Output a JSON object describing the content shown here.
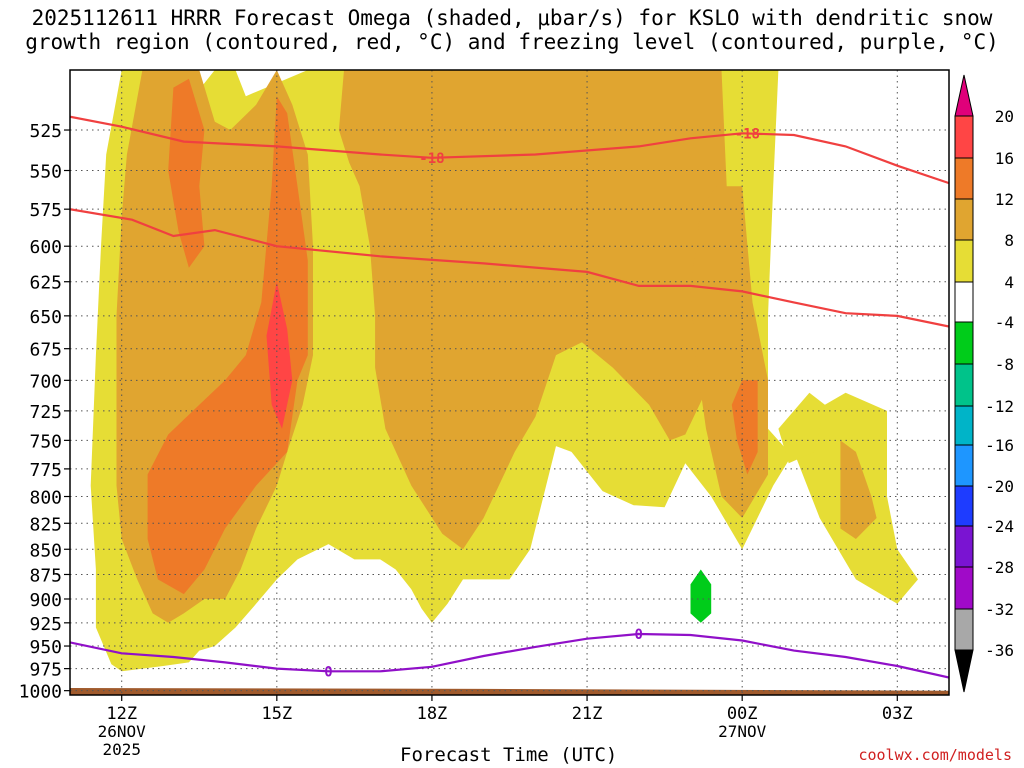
{
  "title": {
    "line1": "2025112611 HRRR Forecast Omega (shaded, μbar/s) for KSLO with dendritic snow",
    "line2": "growth region (contoured, red, °C) and freezing level (contoured, purple, °C)"
  },
  "credit": "coolwx.com/models",
  "chart_data": {
    "type": "heatmap",
    "xlabel": "Forecast Time (UTC)",
    "ylabel": "",
    "x_ticks": [
      {
        "label": "12Z",
        "sub": [
          "26NOV",
          "2025"
        ],
        "hour": 12
      },
      {
        "label": "15Z",
        "sub": [],
        "hour": 15
      },
      {
        "label": "18Z",
        "sub": [],
        "hour": 18
      },
      {
        "label": "21Z",
        "sub": [],
        "hour": 21
      },
      {
        "label": "00Z",
        "sub": [
          "27NOV"
        ],
        "hour": 24
      },
      {
        "label": "03Z",
        "sub": [],
        "hour": 27
      }
    ],
    "xlim_hours": [
      11,
      28
    ],
    "y_ticks": [
      525,
      550,
      575,
      600,
      625,
      650,
      675,
      700,
      725,
      750,
      775,
      800,
      825,
      850,
      875,
      900,
      925,
      950,
      975,
      1000
    ],
    "ylim_hPa": [
      490,
      1005
    ],
    "y_scale": "log",
    "grid": true,
    "colorbar": {
      "levels": [
        "20",
        "16",
        "12",
        "8",
        "4",
        "-4",
        "-8",
        "-12",
        "-16",
        "-20",
        "-24",
        "-28",
        "-32",
        "-36"
      ],
      "colors": [
        "#e0007a",
        "#ff4545",
        "#ee7a28",
        "#e0a530",
        "#e6dd35",
        "#ffffff",
        "#00cc1a",
        "#00c38a",
        "#00b4c8",
        "#1e96ff",
        "#1e3cff",
        "#7a14d2",
        "#a00ac8",
        "#a8a8a8",
        "#000000"
      ]
    },
    "omega_fields": [
      {
        "name": "Omega 4 to 8",
        "color": "#e6dd35",
        "polygons": [
          [
            [
              12.0,
              490
            ],
            [
              13.0,
              490
            ],
            [
              13.4,
              505
            ],
            [
              13.8,
              490
            ],
            [
              14.2,
              490
            ],
            [
              14.4,
              505
            ],
            [
              15.6,
              490
            ],
            [
              16.5,
              490
            ],
            [
              16.9,
              490
            ],
            [
              22.3,
              490
            ],
            [
              23.6,
              490
            ],
            [
              24.7,
              490
            ],
            [
              24.6,
              560
            ],
            [
              24.5,
              650
            ],
            [
              24.5,
              740
            ],
            [
              24.9,
              760
            ],
            [
              25.2,
              730
            ],
            [
              26.0,
              710
            ],
            [
              26.8,
              725
            ],
            [
              26.8,
              800
            ],
            [
              27.0,
              850
            ],
            [
              27.4,
              880
            ],
            [
              27.0,
              905
            ],
            [
              26.2,
              880
            ],
            [
              25.5,
              820
            ],
            [
              25.0,
              760
            ],
            [
              24.6,
              790
            ],
            [
              24.0,
              850
            ],
            [
              23.4,
              800
            ],
            [
              22.9,
              770
            ],
            [
              22.5,
              810
            ],
            [
              21.9,
              808
            ],
            [
              21.3,
              795
            ],
            [
              20.7,
              760
            ],
            [
              20.4,
              755
            ],
            [
              19.9,
              850
            ],
            [
              19.5,
              880
            ],
            [
              19.0,
              880
            ],
            [
              18.6,
              880
            ],
            [
              18.3,
              905
            ],
            [
              18.0,
              925
            ],
            [
              17.8,
              910
            ],
            [
              17.6,
              890
            ],
            [
              17.3,
              870
            ],
            [
              17.0,
              860
            ],
            [
              16.5,
              860
            ],
            [
              16.0,
              845
            ],
            [
              15.4,
              860
            ],
            [
              15.0,
              880
            ],
            [
              14.6,
              905
            ],
            [
              14.2,
              930
            ],
            [
              13.8,
              950
            ],
            [
              13.5,
              955
            ],
            [
              13.3,
              968
            ],
            [
              12.8,
              972
            ],
            [
              12.0,
              978
            ],
            [
              11.8,
              970
            ],
            [
              11.5,
              930
            ],
            [
              11.5,
              870
            ],
            [
              11.4,
              790
            ],
            [
              11.5,
              680
            ],
            [
              11.6,
              600
            ],
            [
              11.7,
              540
            ]
          ],
          [
            [
              24.7,
              740
            ],
            [
              25.3,
              710
            ],
            [
              25.6,
              720
            ],
            [
              25.4,
              760
            ],
            [
              24.9,
              770
            ]
          ]
        ]
      },
      {
        "name": "Omega 8 to 12",
        "color": "#e0a530",
        "polygons": [
          [
            [
              16.3,
              490
            ],
            [
              22.3,
              490
            ],
            [
              23.6,
              490
            ],
            [
              23.7,
              560
            ],
            [
              23.6,
              625
            ],
            [
              23.4,
              700
            ],
            [
              22.9,
              745
            ],
            [
              22.6,
              750
            ],
            [
              22.2,
              720
            ],
            [
              21.5,
              690
            ],
            [
              20.9,
              670
            ],
            [
              20.4,
              680
            ],
            [
              20.0,
              730
            ],
            [
              19.6,
              760
            ],
            [
              19.0,
              820
            ],
            [
              18.6,
              850
            ],
            [
              18.2,
              835
            ],
            [
              17.6,
              790
            ],
            [
              17.1,
              740
            ],
            [
              16.9,
              690
            ],
            [
              16.9,
              650
            ],
            [
              16.8,
              600
            ],
            [
              16.6,
              560
            ],
            [
              16.4,
              545
            ],
            [
              16.2,
              525
            ]
          ],
          [
            [
              12.4,
              490
            ],
            [
              13.5,
              490
            ],
            [
              13.8,
              520
            ],
            [
              14.1,
              525
            ],
            [
              14.6,
              510
            ],
            [
              15.0,
              490
            ],
            [
              15.3,
              510
            ],
            [
              15.6,
              540
            ],
            [
              15.7,
              600
            ],
            [
              15.7,
              680
            ],
            [
              15.5,
              720
            ],
            [
              15.2,
              760
            ],
            [
              15.0,
              790
            ],
            [
              14.6,
              830
            ],
            [
              14.3,
              870
            ],
            [
              14.0,
              900
            ],
            [
              13.6,
              900
            ],
            [
              13.2,
              915
            ],
            [
              12.9,
              925
            ],
            [
              12.6,
              915
            ],
            [
              12.3,
              880
            ],
            [
              12.0,
              840
            ],
            [
              11.9,
              790
            ],
            [
              11.9,
              720
            ],
            [
              11.9,
              650
            ],
            [
              12.0,
              580
            ],
            [
              12.1,
              540
            ]
          ],
          [
            [
              23.2,
              575
            ],
            [
              23.5,
              560
            ],
            [
              24.0,
              560
            ],
            [
              24.2,
              640
            ],
            [
              24.5,
              700
            ],
            [
              24.5,
              780
            ],
            [
              24.0,
              820
            ],
            [
              23.6,
              800
            ],
            [
              23.3,
              740
            ],
            [
              23.1,
              680
            ],
            [
              23.0,
              630
            ]
          ],
          [
            [
              25.9,
              750
            ],
            [
              26.2,
              760
            ],
            [
              26.5,
              800
            ],
            [
              26.6,
              820
            ],
            [
              26.2,
              840
            ],
            [
              25.9,
              830
            ]
          ]
        ]
      },
      {
        "name": "Omega 12 to 16",
        "color": "#ee7a28",
        "polygons": [
          [
            [
              13.0,
              500
            ],
            [
              13.3,
              495
            ],
            [
              13.6,
              525
            ],
            [
              13.5,
              560
            ],
            [
              13.6,
              600
            ],
            [
              13.3,
              615
            ],
            [
              13.1,
              590
            ],
            [
              12.9,
              550
            ]
          ],
          [
            [
              15.0,
              505
            ],
            [
              15.2,
              515
            ],
            [
              15.4,
              560
            ],
            [
              15.6,
              610
            ],
            [
              15.6,
              680
            ],
            [
              15.4,
              700
            ],
            [
              15.2,
              760
            ],
            [
              14.6,
              790
            ],
            [
              14.0,
              830
            ],
            [
              13.6,
              870
            ],
            [
              13.2,
              895
            ],
            [
              12.7,
              880
            ],
            [
              12.5,
              840
            ],
            [
              12.5,
              780
            ],
            [
              12.9,
              745
            ],
            [
              13.5,
              720
            ],
            [
              14.0,
              700
            ],
            [
              14.4,
              680
            ],
            [
              14.7,
              640
            ],
            [
              14.9,
              560
            ]
          ],
          [
            [
              23.8,
              720
            ],
            [
              24.0,
              700
            ],
            [
              24.3,
              700
            ],
            [
              24.3,
              760
            ],
            [
              24.1,
              780
            ],
            [
              23.9,
              750
            ]
          ]
        ]
      },
      {
        "name": "Omega 16 to 20",
        "color": "#ff4545",
        "polygons": [
          [
            [
              14.8,
              665
            ],
            [
              15.0,
              625
            ],
            [
              15.2,
              660
            ],
            [
              15.3,
              700
            ],
            [
              15.1,
              740
            ],
            [
              14.9,
              720
            ]
          ]
        ]
      },
      {
        "name": "Omega -4 to -8",
        "color": "#00cc1a",
        "polygons": [
          [
            [
              23.0,
              885
            ],
            [
              23.2,
              870
            ],
            [
              23.4,
              885
            ],
            [
              23.4,
              915
            ],
            [
              23.2,
              925
            ],
            [
              23.0,
              915
            ]
          ]
        ]
      }
    ],
    "dgz_contours": {
      "color": "#f04040",
      "label": "-18",
      "lines": [
        {
          "points": [
            [
              11.0,
              517
            ],
            [
              12.0,
              523
            ],
            [
              13.2,
              532
            ],
            [
              15.0,
              535
            ],
            [
              17.0,
              540
            ],
            [
              18.0,
              542
            ],
            [
              20.0,
              540
            ],
            [
              22.0,
              535
            ],
            [
              23.0,
              530
            ],
            [
              24.0,
              527
            ],
            [
              25.0,
              528
            ],
            [
              26.0,
              535
            ],
            [
              27.0,
              547
            ],
            [
              28.0,
              558
            ]
          ],
          "label_hours": [
            18.0,
            24.1
          ]
        },
        {
          "points": [
            [
              11.0,
              575
            ],
            [
              12.2,
              582
            ],
            [
              13.0,
              593
            ],
            [
              13.8,
              589
            ],
            [
              15.0,
              600
            ],
            [
              17.0,
              607
            ],
            [
              19.0,
              612
            ],
            [
              21.0,
              618
            ],
            [
              22.0,
              628
            ],
            [
              23.0,
              628
            ],
            [
              24.0,
              632
            ],
            [
              25.0,
              640
            ],
            [
              26.0,
              648
            ],
            [
              27.0,
              650
            ],
            [
              28.0,
              658
            ],
            [
              28.5,
              665
            ]
          ],
          "label_hours": []
        }
      ]
    },
    "freezing_level": {
      "color": "#9010c8",
      "label": "0",
      "points": [
        [
          11.0,
          946
        ],
        [
          12.0,
          958
        ],
        [
          13.0,
          962
        ],
        [
          14.0,
          968
        ],
        [
          15.0,
          975
        ],
        [
          16.0,
          978
        ],
        [
          17.0,
          978
        ],
        [
          18.0,
          973
        ],
        [
          19.0,
          961
        ],
        [
          20.0,
          951
        ],
        [
          21.0,
          942
        ],
        [
          22.0,
          937
        ],
        [
          23.0,
          938
        ],
        [
          24.0,
          944
        ],
        [
          25.0,
          955
        ],
        [
          26.0,
          962
        ],
        [
          27.0,
          972
        ],
        [
          28.0,
          985
        ],
        [
          28.5,
          990
        ]
      ],
      "label_hours": [
        16.0,
        22.0
      ]
    },
    "surface": {
      "color": "#a05a2c",
      "pressure_hPa": [
        997,
        998,
        1000
      ]
    }
  }
}
